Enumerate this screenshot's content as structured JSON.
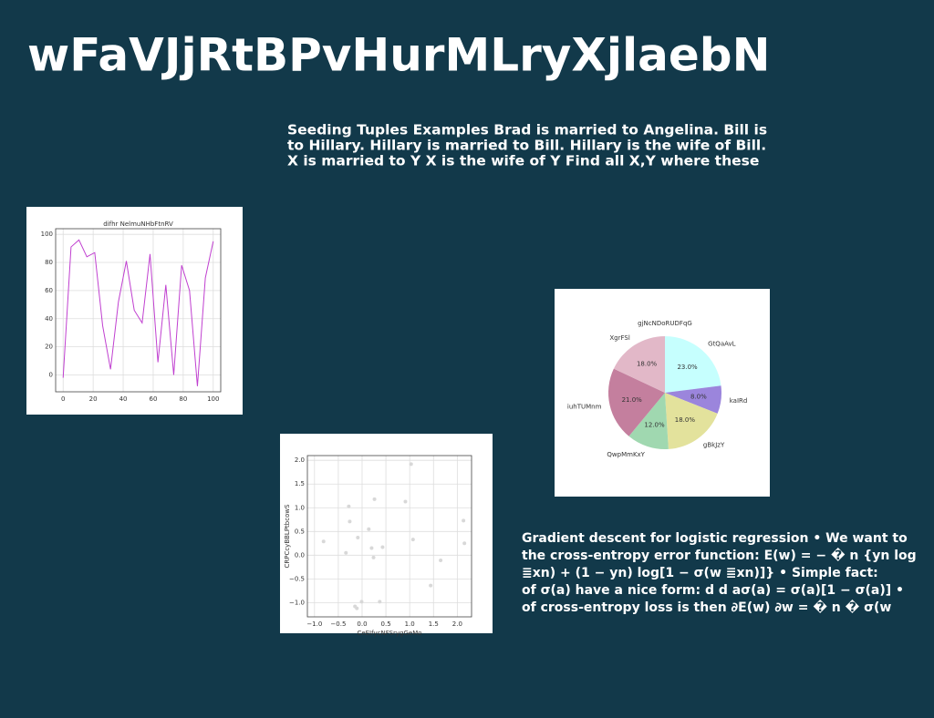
{
  "title": "wFaVJjRtBPvHurMLryXjlaebN",
  "paragraphs": [
    {
      "lines": [
        "Seeding Tuples Examples Brad is married to Angelina. Bill is",
        "to Hillary. Hillary is married to Bill. Hillary is the wife of Bill.",
        "X is married to Y X is the wife of Y Find all X,Y where these"
      ]
    },
    {
      "lines": [
        "Gradient descent for logistic regression • We want to",
        "the cross-entropy error function: E(w) = − � n {yn log",
        "≣xn) + (1 − yn) log[1 − σ(w ≣xn)]} • Simple fact:",
        "of σ(a) have a nice form: d d aσ(a) = σ(a)[1 − σ(a)] •",
        "of cross-entropy loss is then ∂E(w) ∂w = � n � σ(w"
      ]
    }
  ],
  "chart_data": [
    {
      "type": "line",
      "title": "difhr NelmuNHbFtnRV",
      "color": "#c040d0",
      "grid": true,
      "x": [
        0,
        5.26,
        10.53,
        15.79,
        21.05,
        26.32,
        31.58,
        36.84,
        42.11,
        47.37,
        52.63,
        57.89,
        63.16,
        68.42,
        73.68,
        78.95,
        84.21,
        89.47,
        94.74,
        100
      ],
      "values": [
        -2,
        91,
        96,
        84,
        87,
        35,
        4,
        52,
        81,
        46,
        37,
        86,
        9,
        64,
        0,
        78,
        60,
        -8,
        69,
        95
      ],
      "xlim": [
        -5,
        105
      ],
      "ylim": [
        -12,
        104
      ],
      "xticks": [
        0,
        20,
        40,
        60,
        80,
        100
      ],
      "yticks": [
        0,
        20,
        40,
        60,
        80,
        100
      ]
    },
    {
      "type": "pie",
      "title": "gjNcNDoRUDFqG",
      "categories": [
        "GtQaAvL",
        "kaIRd",
        "gBkJzY",
        "QwpMmKxY",
        "iuhTUMnm",
        "XgrFSl"
      ],
      "values": [
        23,
        8,
        18,
        12,
        21,
        18
      ],
      "value_labels": [
        "23.0%",
        "8.0%",
        "18.0%",
        "12.0%",
        "21.0%",
        "18.0%"
      ],
      "colors": [
        "#c6fffe",
        "#9b85dc",
        "#e3e29c",
        "#a0d8b0",
        "#c47f9e",
        "#e2b8c8"
      ]
    },
    {
      "type": "scatter",
      "x_label": "CeEIfycNFSrygGeMo",
      "y_label": "CRPCcyBBLPtbcowS",
      "color": "#d8d8d8",
      "grid": true,
      "x": [
        -0.28,
        -0.26,
        -0.81,
        -0.34,
        -0.09,
        0.14,
        0.26,
        0.2,
        0.24,
        0.43,
        1.03,
        0.91,
        1.07,
        1.65,
        1.44,
        -0.15,
        -0.11,
        -0.01,
        0.37,
        2.13,
        2.15
      ],
      "values": [
        1.03,
        0.71,
        0.29,
        0.05,
        0.37,
        0.55,
        1.18,
        0.15,
        -0.05,
        0.17,
        1.92,
        1.13,
        0.33,
        -0.11,
        -0.64,
        -1.08,
        -1.12,
        -0.98,
        -0.98,
        0.73,
        0.25
      ],
      "xlim": [
        -1.15,
        2.3
      ],
      "ylim": [
        -1.3,
        2.1
      ],
      "xticks": [
        {
          "value": -1,
          "label": "−1.0"
        },
        {
          "value": -0.5,
          "label": "−0.5"
        },
        {
          "value": 0,
          "label": "0.0"
        },
        0.5,
        {
          "value": 1,
          "label": "1.0"
        },
        1.5,
        {
          "value": 2,
          "label": "2.0"
        }
      ],
      "yticks": [
        {
          "value": -1,
          "label": "−1.0"
        },
        {
          "value": -0.5,
          "label": "−0.5"
        },
        {
          "value": 0,
          "label": "0.0"
        },
        0.5,
        {
          "value": 1,
          "label": "1.0"
        },
        1.5,
        {
          "value": 2,
          "label": "2.0"
        }
      ]
    }
  ]
}
